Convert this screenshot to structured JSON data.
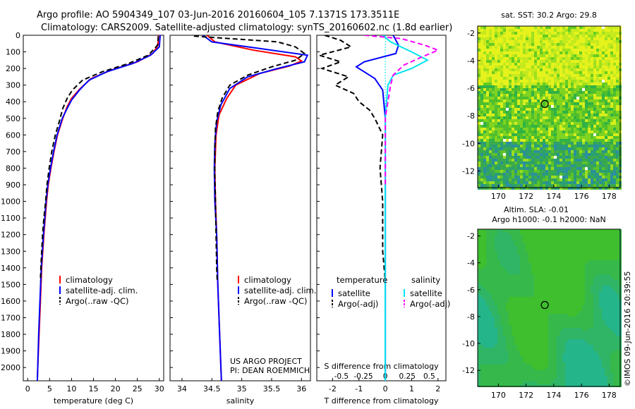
{
  "header": {
    "line1": "Argo profile: AO 5904349_107 03-Jun-2016 20160604_105 7.1371S 173.3511E",
    "line2": "Climatology: CARS2009. Satellite-adjusted climatology: synTS_20160602.nc (1.8d earlier)"
  },
  "credit": "©IMOS 09-Jun-2016 20:39:55",
  "colors": {
    "climatology": "#ff0000",
    "satellite": "#0000ff",
    "argo": "#000000",
    "sal_satellite": "#00e5ee",
    "sal_argo": "#ff00ff"
  },
  "chart_data": [
    {
      "type": "line",
      "id": "temperature",
      "xlabel": "temperature (deg C)",
      "ylabel": "",
      "xlim": [
        -1,
        31
      ],
      "ylim": [
        2080,
        0
      ],
      "xticks": [
        0,
        5,
        10,
        15,
        20,
        25,
        30
      ],
      "yticks": [
        0,
        100,
        200,
        300,
        400,
        500,
        600,
        700,
        800,
        900,
        1000,
        1100,
        1200,
        1300,
        1400,
        1500,
        1600,
        1700,
        1800,
        1900,
        2000
      ],
      "legend": {
        "position": "bottom-center",
        "entries": [
          "climatology",
          "satellite-adj. clim.",
          "Argo(..raw -QC)"
        ]
      },
      "series": [
        {
          "name": "climatology",
          "style": "solid",
          "points": [
            [
              29.8,
              0
            ],
            [
              29.7,
              60
            ],
            [
              28.5,
              110
            ],
            [
              25,
              160
            ],
            [
              19,
              210
            ],
            [
              14.5,
              260
            ],
            [
              12,
              320
            ],
            [
              10,
              380
            ],
            [
              9,
              430
            ],
            [
              8,
              500
            ],
            [
              6.8,
              600
            ],
            [
              6,
              700
            ],
            [
              5.3,
              800
            ],
            [
              4.7,
              900
            ],
            [
              4.3,
              1000
            ],
            [
              3.7,
              1200
            ],
            [
              3.2,
              1400
            ],
            [
              2.9,
              1600
            ],
            [
              2.6,
              1800
            ],
            [
              2.3,
              2000
            ],
            [
              2.2,
              2080
            ]
          ]
        },
        {
          "name": "satellite-adj. clim.",
          "style": "solid",
          "points": [
            [
              30.2,
              0
            ],
            [
              30.0,
              70
            ],
            [
              28.0,
              120
            ],
            [
              24,
              170
            ],
            [
              18,
              220
            ],
            [
              14,
              270
            ],
            [
              11.8,
              330
            ],
            [
              10,
              390
            ],
            [
              9,
              440
            ],
            [
              7.9,
              500
            ],
            [
              6.7,
              600
            ],
            [
              5.9,
              700
            ],
            [
              5.2,
              800
            ],
            [
              4.6,
              900
            ],
            [
              4.2,
              1000
            ],
            [
              3.6,
              1200
            ],
            [
              3.1,
              1400
            ],
            [
              2.8,
              1600
            ],
            [
              2.5,
              1800
            ],
            [
              2.3,
              2000
            ],
            [
              2.2,
              2080
            ]
          ]
        },
        {
          "name": "Argo(..raw -QC)",
          "style": "dashed",
          "points": [
            [
              29.8,
              5
            ],
            [
              29.6,
              60
            ],
            [
              27.5,
              120
            ],
            [
              23,
              170
            ],
            [
              17,
              220
            ],
            [
              12.5,
              270
            ],
            [
              10.2,
              330
            ],
            [
              9,
              380
            ],
            [
              8,
              440
            ],
            [
              7.2,
              520
            ],
            [
              6.3,
              600
            ],
            [
              5.5,
              700
            ],
            [
              4.9,
              800
            ],
            [
              4.4,
              900
            ],
            [
              4.1,
              1000
            ],
            [
              3.7,
              1100
            ],
            [
              3.4,
              1200
            ],
            [
              3.2,
              1300
            ],
            [
              3.0,
              1400
            ],
            [
              2.9,
              1480
            ]
          ]
        }
      ]
    },
    {
      "type": "line",
      "id": "salinity",
      "xlabel": "salinity",
      "xlim": [
        33.8,
        36.15
      ],
      "ylim": [
        2080,
        0
      ],
      "xticks": [
        34,
        34.5,
        35,
        35.5,
        36
      ],
      "legend": {
        "position": "bottom-center",
        "entries": [
          "climatology",
          "satellite-adj. clim.",
          "Argo(..raw -QC)"
        ]
      },
      "annotation": [
        "US ARGO PROJECT",
        "PI: DEAN ROEMMICH"
      ],
      "series": [
        {
          "name": "climatology",
          "style": "solid",
          "points": [
            [
              34.42,
              0
            ],
            [
              34.55,
              40
            ],
            [
              35.2,
              90
            ],
            [
              35.9,
              130
            ],
            [
              36.0,
              155
            ],
            [
              35.8,
              185
            ],
            [
              35.3,
              230
            ],
            [
              34.9,
              300
            ],
            [
              34.75,
              380
            ],
            [
              34.62,
              480
            ],
            [
              34.57,
              600
            ],
            [
              34.55,
              800
            ],
            [
              34.56,
              1000
            ],
            [
              34.58,
              1200
            ],
            [
              34.6,
              1500
            ],
            [
              34.63,
              1800
            ],
            [
              34.66,
              2080
            ]
          ]
        },
        {
          "name": "satellite-adj. clim.",
          "style": "solid",
          "points": [
            [
              34.35,
              0
            ],
            [
              34.5,
              40
            ],
            [
              35.3,
              80
            ],
            [
              36.1,
              120
            ],
            [
              36.05,
              160
            ],
            [
              35.6,
              200
            ],
            [
              35.1,
              250
            ],
            [
              34.8,
              320
            ],
            [
              34.65,
              420
            ],
            [
              34.58,
              520
            ],
            [
              34.55,
              650
            ],
            [
              34.54,
              800
            ],
            [
              34.55,
              1000
            ],
            [
              34.58,
              1200
            ],
            [
              34.6,
              1500
            ],
            [
              34.63,
              1800
            ],
            [
              34.66,
              2080
            ]
          ]
        },
        {
          "name": "Argo(..raw -QC)",
          "style": "dashed",
          "points": [
            [
              34.2,
              5
            ],
            [
              34.8,
              20
            ],
            [
              35.6,
              40
            ],
            [
              35.9,
              70
            ],
            [
              36.05,
              110
            ],
            [
              35.9,
              150
            ],
            [
              35.5,
              190
            ],
            [
              35.1,
              240
            ],
            [
              34.8,
              300
            ],
            [
              34.67,
              380
            ],
            [
              34.6,
              460
            ],
            [
              34.56,
              560
            ],
            [
              34.55,
              700
            ],
            [
              34.55,
              850
            ],
            [
              34.56,
              1000
            ],
            [
              34.57,
              1200
            ],
            [
              34.58,
              1400
            ],
            [
              34.59,
              1480
            ]
          ]
        }
      ]
    },
    {
      "type": "line",
      "id": "difference",
      "xlabel": "T difference from climatology",
      "xlabel_top": "S difference from climatology",
      "xlim": [
        -2.6,
        2.3
      ],
      "ylim": [
        2080,
        0
      ],
      "xticks": [
        -2,
        -1,
        0,
        1,
        2
      ],
      "xticks_secondary": [
        {
          "value": -0.5,
          "label": "-0.5"
        },
        {
          "value": -0.25,
          "label": "-0.25"
        },
        {
          "value": 0,
          "label": "0"
        },
        {
          "value": 0.25,
          "label": "0.25"
        },
        {
          "value": 0.5,
          "label": "0.5"
        }
      ],
      "secondary_scale": 0.3,
      "legend_groups": [
        {
          "title": "temperature",
          "entries": [
            "satellite",
            "Argo(-adj)"
          ]
        },
        {
          "title": "salinity",
          "entries": [
            "satellite",
            "Argo(-adj)"
          ]
        }
      ],
      "series": [
        {
          "name": "T satellite",
          "group": "temperature",
          "style": "solid",
          "points": [
            [
              0.3,
              0
            ],
            [
              0.5,
              60
            ],
            [
              0.4,
              110
            ],
            [
              -0.8,
              160
            ],
            [
              -1.1,
              190
            ],
            [
              -0.8,
              220
            ],
            [
              -0.4,
              260
            ],
            [
              -0.1,
              330
            ],
            [
              0,
              500
            ],
            [
              0,
              800
            ],
            [
              0,
              1200
            ],
            [
              0,
              1600
            ],
            [
              0,
              2080
            ]
          ]
        },
        {
          "name": "T Argo(-adj)",
          "group": "temperature",
          "style": "dashed",
          "points": [
            [
              -2.3,
              0
            ],
            [
              -1.7,
              30
            ],
            [
              -1.3,
              70
            ],
            [
              -2.5,
              120
            ],
            [
              -1.7,
              160
            ],
            [
              -2.4,
              200
            ],
            [
              -1.4,
              250
            ],
            [
              -1.9,
              300
            ],
            [
              -1.2,
              350
            ],
            [
              -1.0,
              400
            ],
            [
              -0.6,
              450
            ],
            [
              -0.4,
              500
            ],
            [
              -0.1,
              600
            ],
            [
              -0.2,
              800
            ],
            [
              -0.1,
              1000
            ],
            [
              -0.1,
              1300
            ],
            [
              0,
              1480
            ]
          ]
        },
        {
          "name": "S satellite",
          "group": "salinity",
          "style": "solid",
          "points": [
            [
              -0.1,
              0
            ],
            [
              0.2,
              40
            ],
            [
              1.0,
              100
            ],
            [
              1.6,
              150
            ],
            [
              1.0,
              200
            ],
            [
              0.3,
              240
            ],
            [
              0.1,
              300
            ],
            [
              0,
              500
            ],
            [
              0,
              800
            ],
            [
              0,
              1200
            ],
            [
              0,
              1600
            ],
            [
              0,
              2080
            ]
          ]
        },
        {
          "name": "S Argo(-adj)",
          "group": "salinity",
          "style": "dashed",
          "points": [
            [
              -0.8,
              0
            ],
            [
              0.6,
              20
            ],
            [
              1.5,
              60
            ],
            [
              2.0,
              90
            ],
            [
              1.4,
              130
            ],
            [
              0.7,
              180
            ],
            [
              0.3,
              240
            ],
            [
              0.2,
              300
            ],
            [
              0.1,
              400
            ],
            [
              0,
              500
            ],
            [
              0,
              700
            ],
            [
              0,
              900
            ]
          ]
        }
      ]
    }
  ],
  "maps": [
    {
      "id": "sst-map",
      "title": "sat. SST: 30.2  Argo: 29.8",
      "xlim": [
        168.5,
        178.8
      ],
      "ylim": [
        -13.2,
        -1.5
      ],
      "xticks": [
        170,
        172,
        174,
        176,
        178
      ],
      "yticks": [
        -2,
        -4,
        -6,
        -8,
        -10,
        -12
      ],
      "marker": {
        "lon": 173.35,
        "lat": -7.14
      }
    },
    {
      "id": "sla-map",
      "title_lines": [
        "Altim. SLA: -0.01",
        "Argo h1000: -0.1  h2000: NaN"
      ],
      "xlim": [
        168.5,
        178.8
      ],
      "ylim": [
        -13.2,
        -1.5
      ],
      "xticks": [
        170,
        172,
        174,
        176,
        178
      ],
      "yticks": [
        -2,
        -4,
        -6,
        -8,
        -10,
        -12
      ],
      "marker": {
        "lon": 173.35,
        "lat": -7.14
      }
    }
  ]
}
